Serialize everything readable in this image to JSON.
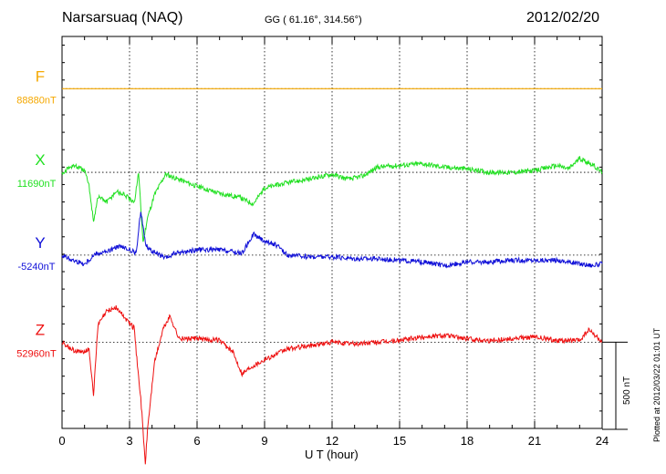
{
  "header": {
    "station": "Narsarsuaq (NAQ)",
    "coordinates": "GG ( 61.16°, 314.56°)",
    "date": "2012/02/20"
  },
  "footer": {
    "plotted": "Plotted at 2012/03/22 01:01 UT",
    "scale": "500 nT"
  },
  "colors": {
    "F": "#f5a800",
    "X": "#22e022",
    "Y": "#1010d8",
    "Z": "#ee1010"
  },
  "chart_data": {
    "type": "line",
    "title": "",
    "xlabel": "U T (hour)",
    "ylabel": "",
    "xlim": [
      0,
      24
    ],
    "xticks": [
      "0",
      "3",
      "6",
      "9",
      "12",
      "15",
      "18",
      "21",
      "24"
    ],
    "grid": true,
    "scale_bar_nT": 500,
    "ylim_nT": [
      -1250,
      1000
    ],
    "series": [
      {
        "name": "F",
        "baseline_label": "88880nT",
        "offset_nT": 700,
        "x": [
          0,
          24
        ],
        "y": [
          0,
          0
        ]
      },
      {
        "name": "X",
        "baseline_label": "11690nT",
        "offset_nT": 220,
        "x": [
          0,
          0.5,
          1,
          1.2,
          1.4,
          1.6,
          2,
          2.4,
          2.8,
          3.2,
          3.4,
          3.6,
          3.8,
          4.1,
          4.6,
          5.2,
          6,
          7,
          7.8,
          8.5,
          9,
          10,
          11,
          12,
          12.7,
          13.4,
          14,
          15,
          16,
          17,
          18,
          19,
          20,
          21,
          22,
          22.5,
          23,
          23.5,
          24
        ],
        "y": [
          0,
          40,
          10,
          -80,
          -280,
          -140,
          -170,
          -110,
          -130,
          -180,
          0,
          -400,
          -260,
          -130,
          -10,
          -40,
          -80,
          -120,
          -140,
          -180,
          -90,
          -60,
          -40,
          -10,
          -40,
          -20,
          30,
          40,
          50,
          30,
          20,
          0,
          0,
          10,
          40,
          20,
          80,
          50,
          0
        ]
      },
      {
        "name": "Y",
        "baseline_label": "-5240nT",
        "offset_nT": -255,
        "x": [
          0,
          0.5,
          1,
          1.5,
          2,
          2.5,
          3,
          3.3,
          3.5,
          3.7,
          3.9,
          4.2,
          4.6,
          5,
          5.5,
          6,
          7,
          8,
          8.5,
          9,
          9.5,
          10,
          11,
          12,
          13,
          14,
          15,
          16,
          17,
          18,
          19,
          20,
          21,
          22,
          23,
          23.6,
          24
        ],
        "y": [
          0,
          -30,
          -50,
          10,
          20,
          50,
          30,
          10,
          260,
          70,
          30,
          10,
          -20,
          10,
          20,
          30,
          30,
          10,
          120,
          80,
          60,
          0,
          -10,
          -10,
          -20,
          -20,
          -30,
          -40,
          -60,
          -40,
          -40,
          -30,
          -30,
          -30,
          -50,
          -60,
          -50
        ]
      },
      {
        "name": "Z",
        "baseline_label": "52960nT",
        "offset_nT": -755,
        "x": [
          0,
          0.4,
          0.8,
          1.2,
          1.4,
          1.6,
          2,
          2.4,
          2.8,
          3.2,
          3.4,
          3.5,
          3.7,
          3.8,
          4.1,
          4.5,
          4.8,
          5.2,
          6,
          7,
          7.6,
          8,
          8.4,
          9,
          10,
          11,
          12,
          13,
          14,
          15,
          16,
          17,
          18,
          19,
          20,
          21,
          22,
          23,
          23.4,
          24
        ],
        "y": [
          0,
          -40,
          -60,
          -40,
          -300,
          100,
          180,
          200,
          140,
          80,
          -200,
          -320,
          -700,
          -500,
          -120,
          80,
          150,
          20,
          20,
          10,
          -60,
          -180,
          -140,
          -100,
          -40,
          -20,
          0,
          -10,
          0,
          10,
          30,
          40,
          20,
          10,
          20,
          30,
          10,
          10,
          70,
          0
        ]
      }
    ]
  }
}
